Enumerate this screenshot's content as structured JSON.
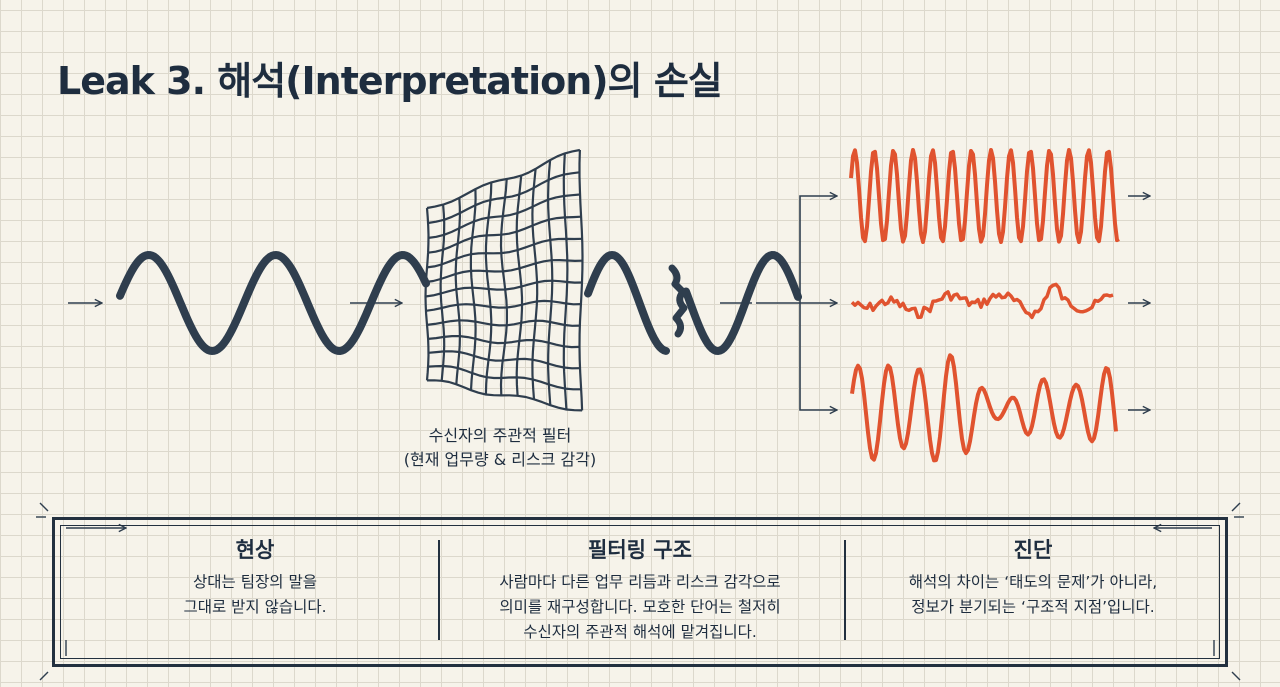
{
  "title": "Leak 3. 해석(Interpretation)의 손실",
  "filter_caption": {
    "line1": "수신자의 주관적 필터",
    "line2": "(현재 업무량 & 리스크 감각)"
  },
  "panel": {
    "columns": [
      {
        "heading": "현상",
        "lines": [
          "상대는 팀장의 말을",
          "그대로 받지 않습니다."
        ]
      },
      {
        "heading": "필터링 구조",
        "lines": [
          "사람마다 다른 업무 리듬과 리스크 감각으로",
          "의미를 재구성합니다. 모호한 단어는 철저히",
          "수신자의 주관적 해석에 맡겨집니다."
        ]
      },
      {
        "heading": "진단",
        "lines": [
          "해석의 차이는 ‘태도의 문제’가 아니라,",
          "정보가 분기되는 ‘구조적 지점’입니다."
        ]
      }
    ]
  },
  "colors": {
    "ink": "#2f3e4e",
    "accent": "#e0532f",
    "background": "#f6f3ea",
    "grid": "#dcd8cc"
  }
}
